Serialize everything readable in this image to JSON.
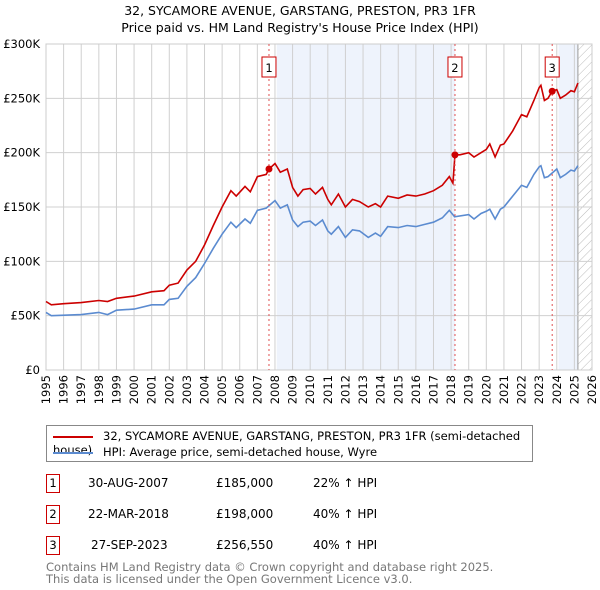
{
  "chart_data": {
    "type": "line",
    "title": "32, SYCAMORE AVENUE, GARSTANG, PRESTON, PR3 1FR",
    "subtitle": "Price paid vs. HM Land Registry's House Price Index (HPI)",
    "xlim": [
      1995,
      2026
    ],
    "ylim": [
      0,
      300000
    ],
    "x_ticks": [
      "1995",
      "1996",
      "1997",
      "1998",
      "1999",
      "2000",
      "2001",
      "2002",
      "2003",
      "2004",
      "2005",
      "2006",
      "2007",
      "2008",
      "2009",
      "2010",
      "2011",
      "2012",
      "2013",
      "2014",
      "2015",
      "2016",
      "2017",
      "2018",
      "2019",
      "2020",
      "2021",
      "2022",
      "2023",
      "2024",
      "2025",
      "2026"
    ],
    "y_ticks": [
      {
        "v": 0,
        "label": "£0"
      },
      {
        "v": 50000,
        "label": "£50K"
      },
      {
        "v": 100000,
        "label": "£100K"
      },
      {
        "v": 150000,
        "label": "£150K"
      },
      {
        "v": 200000,
        "label": "£200K"
      },
      {
        "v": 250000,
        "label": "£250K"
      },
      {
        "v": 300000,
        "label": "£300K"
      }
    ],
    "grid": true,
    "shaded_ranges": [
      [
        2008.1,
        2018.22
      ],
      [
        2024.1,
        2025.2
      ]
    ],
    "hatched_range": [
      2025.2,
      2026
    ],
    "series": [
      {
        "name": "32, SYCAMORE AVENUE, GARSTANG, PRESTON, PR3 1FR (semi-detached house)",
        "color": "#cc0000",
        "x": [
          1995,
          1995.3,
          1996,
          1997,
          1998,
          1998.5,
          1999,
          2000,
          2001,
          2001.7,
          2002,
          2002.5,
          2003,
          2003.5,
          2004,
          2004.5,
          2005,
          2005.5,
          2005.8,
          2006.3,
          2006.6,
          2007,
          2007.5,
          2007.66,
          2008,
          2008.3,
          2008.7,
          2009,
          2009.3,
          2009.6,
          2010,
          2010.3,
          2010.7,
          2011,
          2011.2,
          2011.6,
          2012,
          2012.4,
          2012.8,
          2013.3,
          2013.7,
          2014,
          2014.4,
          2015,
          2015.5,
          2016,
          2016.5,
          2017,
          2017.5,
          2017.9,
          2018.1,
          2018.22,
          2018.5,
          2019,
          2019.3,
          2019.7,
          2020,
          2020.2,
          2020.5,
          2020.8,
          2021,
          2021.5,
          2022,
          2022.3,
          2022.7,
          2023,
          2023.1,
          2023.3,
          2023.5,
          2023.74,
          2024,
          2024.2,
          2024.5,
          2024.8,
          2025,
          2025.2
        ],
        "y": [
          63000,
          60000,
          61000,
          62000,
          64000,
          63000,
          66000,
          68000,
          72000,
          73000,
          78000,
          80000,
          92000,
          100000,
          115000,
          133000,
          150000,
          165000,
          160000,
          169000,
          164000,
          178000,
          180000,
          185000,
          190000,
          182000,
          185000,
          168000,
          160000,
          166000,
          167000,
          162000,
          168000,
          157000,
          152000,
          162000,
          150000,
          157000,
          155000,
          150000,
          153000,
          150000,
          160000,
          158000,
          161000,
          160000,
          162000,
          165000,
          170000,
          178000,
          172000,
          198000,
          198000,
          200000,
          196000,
          200000,
          203000,
          208000,
          196000,
          207000,
          208000,
          220000,
          235000,
          233000,
          248000,
          260000,
          262000,
          248000,
          250000,
          256550,
          258000,
          250000,
          253000,
          257000,
          256000,
          264000
        ]
      },
      {
        "name": "HPI: Average price, semi-detached house, Wyre",
        "color": "#5b8bd0",
        "x": [
          1995,
          1995.3,
          1997,
          1998,
          1998.5,
          1999,
          2000,
          2001,
          2001.7,
          2002,
          2002.5,
          2003,
          2003.5,
          2004,
          2004.5,
          2005,
          2005.5,
          2005.8,
          2006.3,
          2006.6,
          2007,
          2007.5,
          2008,
          2008.3,
          2008.7,
          2009,
          2009.3,
          2009.6,
          2010,
          2010.3,
          2010.7,
          2011,
          2011.2,
          2011.6,
          2012,
          2012.4,
          2012.8,
          2013.3,
          2013.7,
          2014,
          2014.4,
          2015,
          2015.5,
          2016,
          2016.5,
          2017,
          2017.5,
          2017.9,
          2018.2,
          2019,
          2019.3,
          2019.7,
          2020,
          2020.2,
          2020.5,
          2020.8,
          2021,
          2021.5,
          2022,
          2022.3,
          2022.7,
          2023,
          2023.1,
          2023.3,
          2023.5,
          2024,
          2024.2,
          2024.5,
          2024.8,
          2025,
          2025.2
        ],
        "y": [
          53000,
          50000,
          51000,
          53000,
          51000,
          55000,
          56000,
          60000,
          60000,
          65000,
          66000,
          77000,
          85000,
          98000,
          112000,
          125000,
          136000,
          131000,
          139000,
          135000,
          147000,
          149000,
          156000,
          149000,
          152000,
          138000,
          132000,
          136000,
          137000,
          133000,
          138000,
          128000,
          125000,
          132000,
          122000,
          129000,
          128000,
          122000,
          126000,
          123000,
          132000,
          131000,
          133000,
          132000,
          134000,
          136000,
          140000,
          147000,
          141000,
          143000,
          139000,
          144000,
          146000,
          148000,
          139000,
          148000,
          150000,
          160000,
          170000,
          168000,
          180000,
          187000,
          188000,
          177000,
          178000,
          185000,
          177000,
          180000,
          184000,
          183000,
          188000
        ]
      }
    ],
    "sales": [
      {
        "num": "1",
        "x": 2007.66,
        "y": 185000,
        "date": "30-AUG-2007",
        "price": "£185,000",
        "hpi": "22% ↑ HPI"
      },
      {
        "num": "2",
        "x": 2018.22,
        "y": 198000,
        "date": "22-MAR-2018",
        "price": "£198,000",
        "hpi": "40% ↑ HPI"
      },
      {
        "num": "3",
        "x": 2023.74,
        "y": 256550,
        "date": "27-SEP-2023",
        "price": "£256,550",
        "hpi": "40% ↑ HPI"
      }
    ]
  },
  "footer": {
    "line1": "Contains HM Land Registry data © Crown copyright and database right 2025.",
    "line2": "This data is licensed under the Open Government Licence v3.0."
  }
}
